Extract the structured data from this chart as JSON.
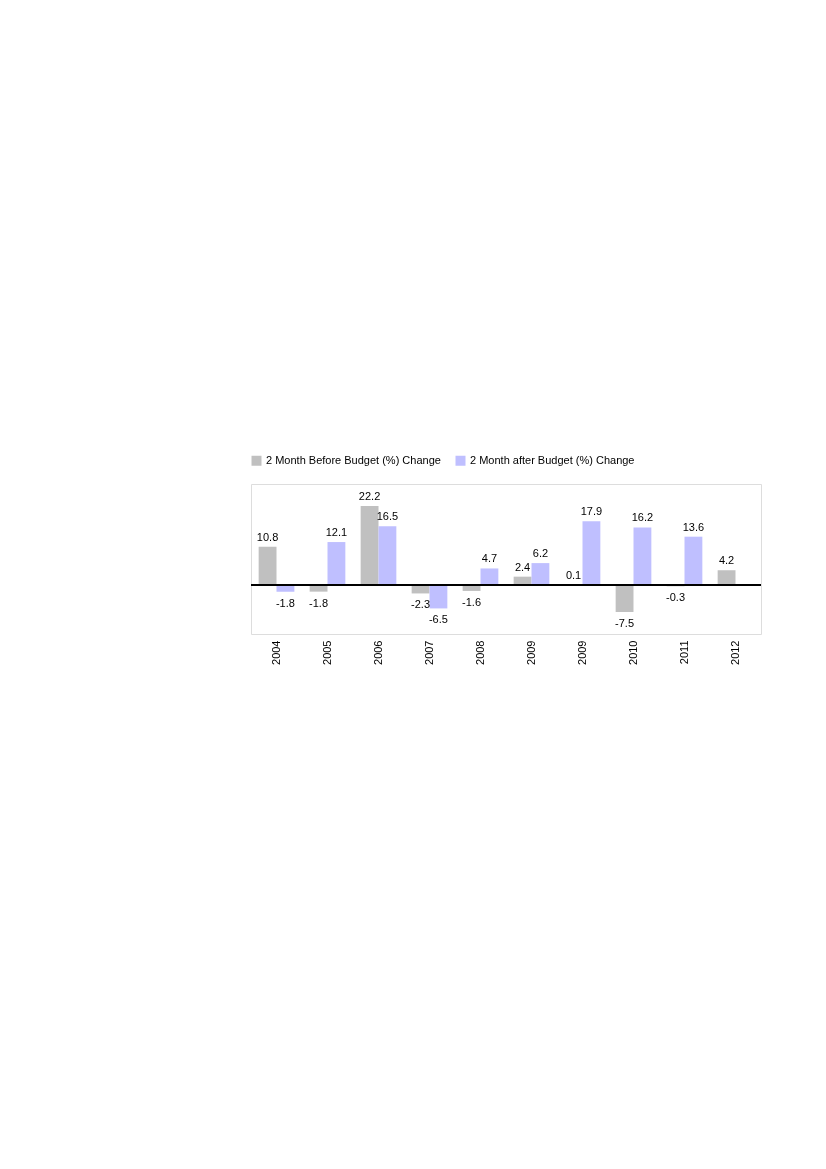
{
  "chart_data": {
    "type": "bar",
    "categories": [
      "2004",
      "2005",
      "2006",
      "2007",
      "2008",
      "2009",
      "2009",
      "2010",
      "2011",
      "2012"
    ],
    "series": [
      {
        "name": "2 Month Before Budget (%) Change",
        "color": "#c0c0c0",
        "values": [
          10.8,
          -1.8,
          22.2,
          -2.3,
          -1.6,
          2.4,
          0.1,
          -7.5,
          -0.3,
          4.2
        ]
      },
      {
        "name": "2 Month after Budget (%) Change",
        "color": "#bfbfff",
        "values": [
          -1.8,
          12.1,
          16.5,
          -6.5,
          4.7,
          6.2,
          17.9,
          16.2,
          13.6,
          null
        ]
      }
    ],
    "data_labels": true,
    "legend": "top",
    "tick_labels": "x"
  }
}
